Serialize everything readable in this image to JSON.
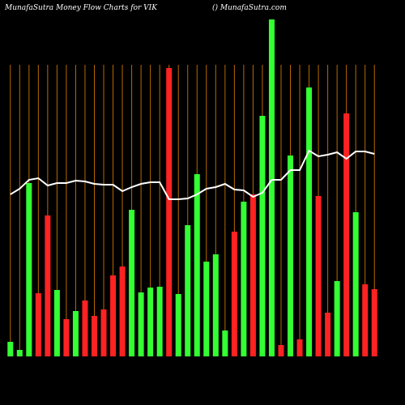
{
  "chart_data": {
    "type": "bar-line",
    "title": "MunafaSutra  Money Flow  Charts for VIK",
    "subtitle": "() MunafaSutra.com",
    "categories": [
      null,
      null,
      null,
      null,
      null,
      null,
      null,
      null,
      null,
      null,
      null,
      null,
      null,
      null,
      null,
      null,
      null,
      null,
      null,
      null,
      null,
      null,
      null,
      null,
      null,
      null,
      null,
      null,
      null,
      null,
      null,
      null,
      null,
      null,
      null,
      null,
      null,
      null,
      null,
      null
    ],
    "ylim": [
      0,
      420
    ],
    "grid": true,
    "grid_color": "#b86a00",
    "background": "#000000",
    "bars": {
      "values": [
        18,
        8,
        214,
        78,
        174,
        82,
        46,
        56,
        69,
        50,
        58,
        100,
        111,
        181,
        79,
        85,
        86,
        356,
        77,
        162,
        225,
        117,
        126,
        32,
        154,
        191,
        200,
        297,
        416,
        14,
        248,
        21,
        332,
        198,
        54,
        93,
        300,
        178,
        89,
        83
      ],
      "colors": [
        "#33ff33",
        "#33ff33",
        "#33ff33",
        "#ff2222",
        "#ff2222",
        "#33ff33",
        "#ff2222",
        "#33ff33",
        "#ff2222",
        "#ff2222",
        "#ff2222",
        "#ff2222",
        "#ff2222",
        "#33ff33",
        "#33ff33",
        "#33ff33",
        "#33ff33",
        "#ff2222",
        "#33ff33",
        "#33ff33",
        "#33ff33",
        "#33ff33",
        "#33ff33",
        "#33ff33",
        "#ff2222",
        "#33ff33",
        "#ff2222",
        "#33ff33",
        "#33ff33",
        "#ff2222",
        "#33ff33",
        "#ff2222",
        "#33ff33",
        "#ff2222",
        "#ff2222",
        "#33ff33",
        "#ff2222",
        "#33ff33",
        "#ff2222",
        "#ff2222"
      ]
    },
    "line": {
      "color": "#ffffff",
      "values": [
        200,
        207,
        218,
        220,
        211,
        214,
        214,
        217,
        216,
        213,
        212,
        212,
        204,
        209,
        213,
        215,
        215,
        194,
        194,
        195,
        200,
        207,
        209,
        213,
        206,
        205,
        197,
        202,
        218,
        218,
        230,
        230,
        254,
        247,
        249,
        252,
        244,
        253,
        253,
        250
      ]
    }
  }
}
